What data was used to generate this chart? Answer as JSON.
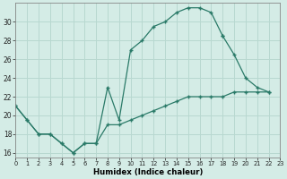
{
  "xlabel": "Humidex (Indice chaleur)",
  "bg_color": "#d4ece6",
  "grid_color": "#b8d8d0",
  "line_color": "#2a7a68",
  "xlim": [
    0,
    23
  ],
  "ylim": [
    15.5,
    32
  ],
  "yticks": [
    16,
    18,
    20,
    22,
    24,
    26,
    28,
    30
  ],
  "xticks": [
    0,
    1,
    2,
    3,
    4,
    5,
    6,
    7,
    8,
    9,
    10,
    11,
    12,
    13,
    14,
    15,
    16,
    17,
    18,
    19,
    20,
    21,
    22,
    23
  ],
  "curve1_x": [
    0,
    1,
    2,
    3,
    4,
    5,
    6,
    7,
    8,
    9,
    10,
    11,
    12,
    13,
    14,
    15,
    16,
    17,
    18
  ],
  "curve1_y": [
    21,
    19.5,
    18,
    18,
    17,
    16,
    17,
    17,
    23,
    19.5,
    27,
    28,
    29.5,
    30,
    31,
    31.5,
    31.5,
    31,
    28.5
  ],
  "curve2_x": [
    0,
    1,
    2,
    3,
    4,
    5,
    6,
    7,
    8,
    9,
    10,
    11,
    12,
    13,
    14,
    15,
    16,
    17,
    18,
    19,
    20,
    21,
    22
  ],
  "curve2_y": [
    21,
    19.5,
    18,
    18,
    17,
    16,
    17,
    17,
    19,
    19,
    19.5,
    20,
    20.5,
    21,
    21.5,
    22,
    22,
    22,
    22,
    22.5,
    22.5,
    22.5,
    22.5
  ],
  "curve3_x": [
    18,
    19,
    20,
    21,
    22
  ],
  "curve3_y": [
    28.5,
    26.5,
    24,
    23,
    22.5
  ]
}
